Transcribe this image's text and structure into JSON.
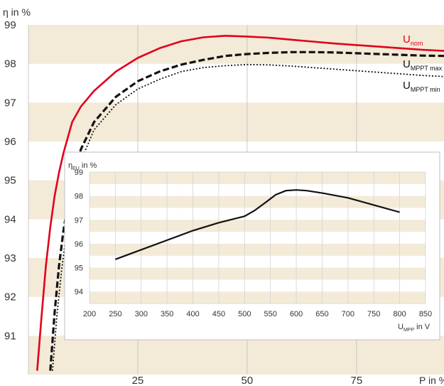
{
  "colors": {
    "band": "#f3ead8",
    "grid": "#c8c8c8",
    "nominal": "#e2001a",
    "ink": "#111111",
    "text": "#333333"
  },
  "chart_data": [
    {
      "type": "line",
      "title": "",
      "xlabel": "P in %",
      "ylabel": "η in %",
      "xlim": [
        0,
        95
      ],
      "ylim": [
        90,
        99
      ],
      "x_ticks": [
        25,
        50,
        75
      ],
      "y_ticks": [
        91,
        92,
        93,
        94,
        95,
        96,
        97,
        98,
        99
      ],
      "grid": true,
      "legend": "right, labels next to curves",
      "series": [
        {
          "name": "U",
          "sub": "nom",
          "style": "solid",
          "color": "#e2001a",
          "x": [
            2,
            3,
            4,
            5,
            6,
            7,
            8,
            10,
            12,
            15,
            20,
            25,
            30,
            35,
            40,
            45,
            50,
            55,
            60,
            65,
            70,
            75,
            80,
            85,
            90,
            95
          ],
          "y": [
            90.1,
            91.5,
            92.8,
            93.8,
            94.6,
            95.2,
            95.7,
            96.5,
            96.9,
            97.3,
            97.8,
            98.15,
            98.4,
            98.58,
            98.68,
            98.72,
            98.7,
            98.67,
            98.62,
            98.57,
            98.52,
            98.48,
            98.44,
            98.4,
            98.36,
            98.33
          ]
        },
        {
          "name": "U",
          "sub": "MPPT max",
          "style": "dash",
          "color": "#111111",
          "x": [
            5,
            6,
            7,
            8,
            9,
            10,
            12,
            15,
            20,
            25,
            30,
            35,
            40,
            45,
            50,
            55,
            60,
            65,
            70,
            75,
            80,
            85,
            90,
            95
          ],
          "y": [
            90.1,
            91.6,
            92.8,
            93.7,
            94.4,
            95,
            95.8,
            96.5,
            97.15,
            97.55,
            97.8,
            97.98,
            98.1,
            98.2,
            98.25,
            98.28,
            98.3,
            98.3,
            98.29,
            98.27,
            98.25,
            98.23,
            98.21,
            98.2
          ]
        },
        {
          "name": "U",
          "sub": "MPPT min",
          "style": "dot",
          "color": "#111111",
          "x": [
            5.5,
            6.5,
            7.5,
            8.5,
            9.5,
            10.5,
            12,
            15,
            20,
            25,
            30,
            35,
            40,
            45,
            50,
            55,
            60,
            65,
            70,
            75,
            80,
            85,
            90,
            95
          ],
          "y": [
            90.1,
            91.5,
            92.6,
            93.5,
            94.2,
            94.8,
            95.5,
            96.3,
            96.95,
            97.35,
            97.6,
            97.8,
            97.9,
            97.95,
            97.98,
            97.97,
            97.94,
            97.9,
            97.86,
            97.82,
            97.78,
            97.74,
            97.7,
            97.67
          ]
        }
      ]
    },
    {
      "type": "line",
      "title": "",
      "xlabel": "U in V",
      "xlabel_sub": "MPP",
      "ylabel": "η in %",
      "ylabel_sub": "EU",
      "xlim": [
        200,
        850
      ],
      "ylim": [
        93.5,
        99
      ],
      "x_ticks": [
        200,
        250,
        300,
        350,
        400,
        450,
        500,
        550,
        600,
        650,
        700,
        750,
        800,
        850
      ],
      "y_ticks": [
        94,
        95,
        96,
        97,
        98,
        99
      ],
      "grid": true,
      "series": [
        {
          "style": "solid",
          "color": "#111111",
          "x": [
            250,
            300,
            350,
            400,
            450,
            500,
            520,
            540,
            560,
            580,
            600,
            620,
            650,
            700,
            750,
            800
          ],
          "y": [
            95.35,
            95.75,
            96.15,
            96.55,
            96.88,
            97.15,
            97.4,
            97.72,
            98.05,
            98.22,
            98.25,
            98.22,
            98.12,
            97.92,
            97.62,
            97.32
          ]
        }
      ]
    }
  ]
}
